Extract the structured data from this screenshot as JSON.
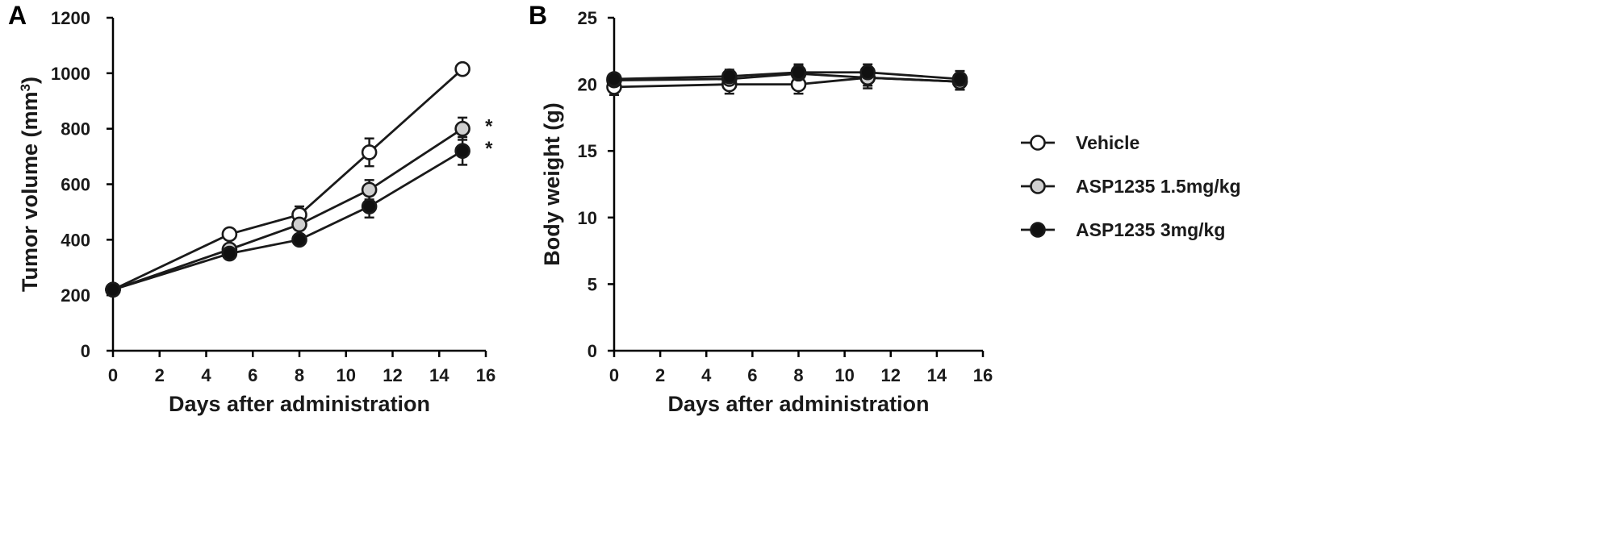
{
  "chart_data": [
    {
      "type": "line",
      "panel_label": "A",
      "xlabel": "Days after administration",
      "ylabel": "Tumor volume (mm",
      "ylabel_sup": "3",
      "ylabel_close": ")",
      "xlim": [
        0,
        16
      ],
      "ylim": [
        0,
        1200
      ],
      "xticks": [
        0,
        2,
        4,
        6,
        8,
        10,
        12,
        14,
        16
      ],
      "yticks": [
        0,
        200,
        400,
        600,
        800,
        1000,
        1200
      ],
      "x": [
        0,
        5,
        8,
        11,
        15
      ],
      "series": [
        {
          "name": "Vehicle",
          "marker_fill": "#ffffff",
          "values": [
            220,
            420,
            490,
            715,
            1015
          ],
          "errors": [
            0,
            15,
            30,
            50,
            15
          ]
        },
        {
          "name": "ASP1235 1.5mg/kg",
          "marker_fill": "#cfcfcf",
          "values": [
            220,
            365,
            455,
            580,
            800
          ],
          "errors": [
            0,
            15,
            20,
            35,
            40
          ]
        },
        {
          "name": "ASP1235 3mg/kg",
          "marker_fill": "#111111",
          "values": [
            220,
            350,
            400,
            520,
            720
          ],
          "errors": [
            0,
            15,
            15,
            40,
            50
          ]
        }
      ],
      "annotations": [
        {
          "text": "*",
          "x": 15,
          "y": 800
        },
        {
          "text": "*",
          "x": 15,
          "y": 720
        }
      ]
    },
    {
      "type": "line",
      "panel_label": "B",
      "xlabel": "Days after administration",
      "ylabel": "Body weight (g)",
      "xlim": [
        0,
        16
      ],
      "ylim": [
        0,
        25
      ],
      "xticks": [
        0,
        2,
        4,
        6,
        8,
        10,
        12,
        14,
        16
      ],
      "yticks": [
        0,
        5,
        10,
        15,
        20,
        25
      ],
      "x": [
        0,
        5,
        8,
        11,
        15
      ],
      "series": [
        {
          "name": "Vehicle",
          "marker_fill": "#ffffff",
          "values": [
            19.8,
            20.0,
            20.0,
            20.5,
            20.2
          ],
          "errors": [
            0.6,
            0.7,
            0.7,
            0.8,
            0.6
          ]
        },
        {
          "name": "ASP1235 1.5mg/kg",
          "marker_fill": "#cfcfcf",
          "values": [
            20.3,
            20.4,
            20.8,
            20.5,
            20.2
          ],
          "errors": [
            0.4,
            0.5,
            0.6,
            0.6,
            0.6
          ]
        },
        {
          "name": "ASP1235 3mg/kg",
          "marker_fill": "#111111",
          "values": [
            20.4,
            20.6,
            20.9,
            20.9,
            20.4
          ],
          "errors": [
            0.4,
            0.5,
            0.6,
            0.6,
            0.6
          ]
        }
      ]
    }
  ],
  "legend": {
    "placement": "right",
    "items": [
      {
        "label": "Vehicle",
        "marker_fill": "#ffffff"
      },
      {
        "label": "ASP1235 1.5mg/kg",
        "marker_fill": "#cfcfcf"
      },
      {
        "label": "ASP1235 3mg/kg",
        "marker_fill": "#111111"
      }
    ]
  }
}
